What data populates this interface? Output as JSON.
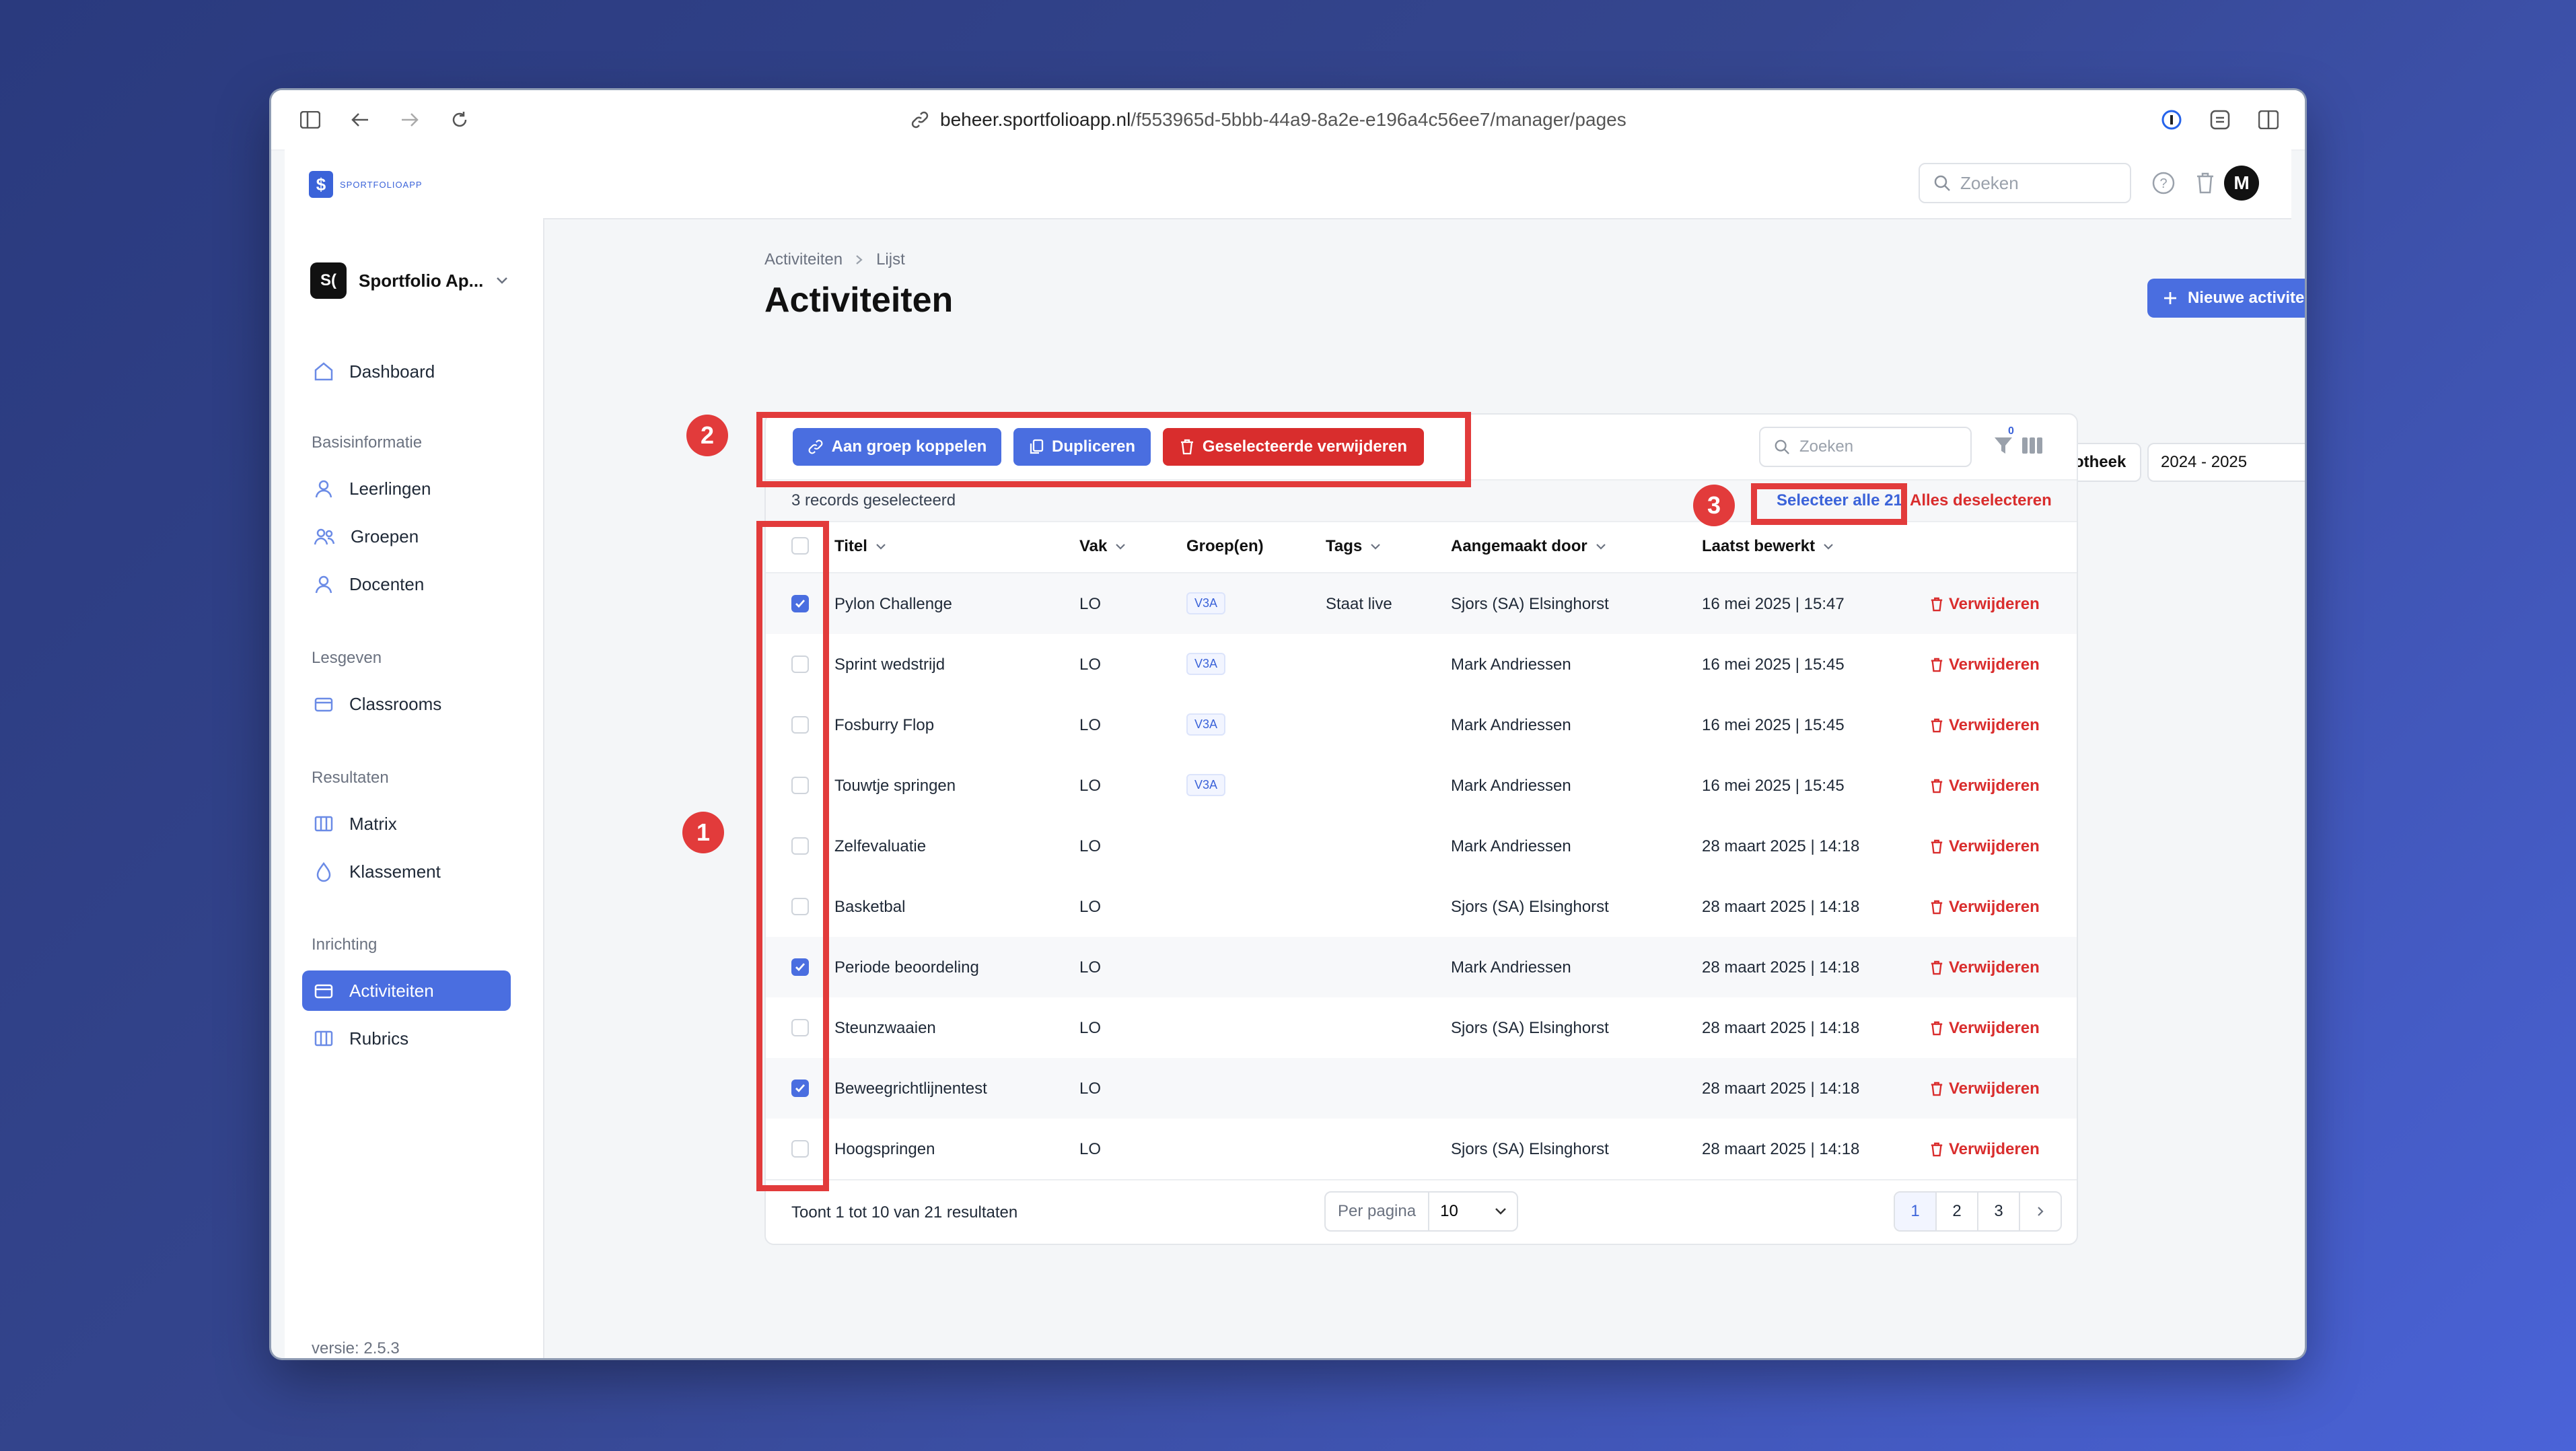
{
  "browser": {
    "url_host": "beheer.sportfolioapp.nl",
    "url_path": "/f553965d-5bbb-44a9-8a2e-e196a4c56ee7/manager/pages"
  },
  "app": {
    "logo_text": "SPORTFOLIOAPP",
    "search_placeholder": "Zoeken",
    "avatar_initial": "M"
  },
  "sidebar": {
    "org_badge": "S(",
    "org_name": "Sportfolio Ap...",
    "items": [
      {
        "label": "Dashboard"
      },
      {
        "label": "Leerlingen"
      },
      {
        "label": "Groepen"
      },
      {
        "label": "Docenten"
      },
      {
        "label": "Classrooms"
      },
      {
        "label": "Matrix"
      },
      {
        "label": "Klassement"
      },
      {
        "label": "Activiteiten"
      },
      {
        "label": "Rubrics"
      }
    ],
    "sections": [
      "Basisinformatie",
      "Lesgeven",
      "Resultaten",
      "Inrichting"
    ],
    "version": "versie: 2.5.3"
  },
  "page": {
    "breadcrumb": [
      "Activiteiten",
      "Lijst"
    ],
    "title": "Activiteiten",
    "new_button": "Nieuwe activiteit",
    "library_button": "Bibliotheek",
    "year_select": "2024 - 2025"
  },
  "table": {
    "bulk_actions": [
      "Aan groep koppelen",
      "Dupliceren",
      "Geselecteerde verwijderen"
    ],
    "search_placeholder": "Zoeken",
    "filter_count": "0",
    "selected_text": "3 records geselecteerd",
    "select_all": "Selecteer alle 21",
    "deselect_all": "Alles deselecteren",
    "columns": [
      "Titel",
      "Vak",
      "Groep(en)",
      "Tags",
      "Aangemaakt door",
      "Laatst bewerkt"
    ],
    "delete_label": "Verwijderen",
    "rows": [
      {
        "title": "Pylon Challenge",
        "vak": "LO",
        "groep": "V3A",
        "tags": "Staat live",
        "author": "Sjors (SA) Elsinghorst",
        "edited": "16 mei 2025 | 15:47"
      },
      {
        "title": "Sprint wedstrijd",
        "vak": "LO",
        "groep": "V3A",
        "tags": "",
        "author": "Mark Andriessen",
        "edited": "16 mei 2025 | 15:45"
      },
      {
        "title": "Fosburry Flop",
        "vak": "LO",
        "groep": "V3A",
        "tags": "",
        "author": "Mark Andriessen",
        "edited": "16 mei 2025 | 15:45"
      },
      {
        "title": "Touwtje springen",
        "vak": "LO",
        "groep": "V3A",
        "tags": "",
        "author": "Mark Andriessen",
        "edited": "16 mei 2025 | 15:45"
      },
      {
        "title": "Zelfevaluatie",
        "vak": "LO",
        "groep": "",
        "tags": "",
        "author": "Mark Andriessen",
        "edited": "28 maart 2025 | 14:18"
      },
      {
        "title": "Basketbal",
        "vak": "LO",
        "groep": "",
        "tags": "",
        "author": "Sjors (SA) Elsinghorst",
        "edited": "28 maart 2025 | 14:18"
      },
      {
        "title": "Periode beoordeling",
        "vak": "LO",
        "groep": "",
        "tags": "",
        "author": "Mark Andriessen",
        "edited": "28 maart 2025 | 14:18"
      },
      {
        "title": "Steunzwaaien",
        "vak": "LO",
        "groep": "",
        "tags": "",
        "author": "Sjors (SA) Elsinghorst",
        "edited": "28 maart 2025 | 14:18"
      },
      {
        "title": "Beweegrichtlijnentest",
        "vak": "LO",
        "groep": "",
        "tags": "",
        "author": "",
        "edited": "28 maart 2025 | 14:18"
      },
      {
        "title": "Hoogspringen",
        "vak": "LO",
        "groep": "",
        "tags": "",
        "author": "Sjors (SA) Elsinghorst",
        "edited": "28 maart 2025 | 14:18"
      }
    ],
    "footer_text": "Toont 1 tot 10 van 21 resultaten",
    "per_page_label": "Per pagina",
    "per_page_value": "10",
    "pages": [
      "1",
      "2",
      "3"
    ]
  },
  "annotations": {
    "markers": [
      "1",
      "2",
      "3"
    ],
    "color": "#e23b3b"
  },
  "colors": {
    "accent": "#4a6ee0",
    "danger": "#d92d2d"
  }
}
